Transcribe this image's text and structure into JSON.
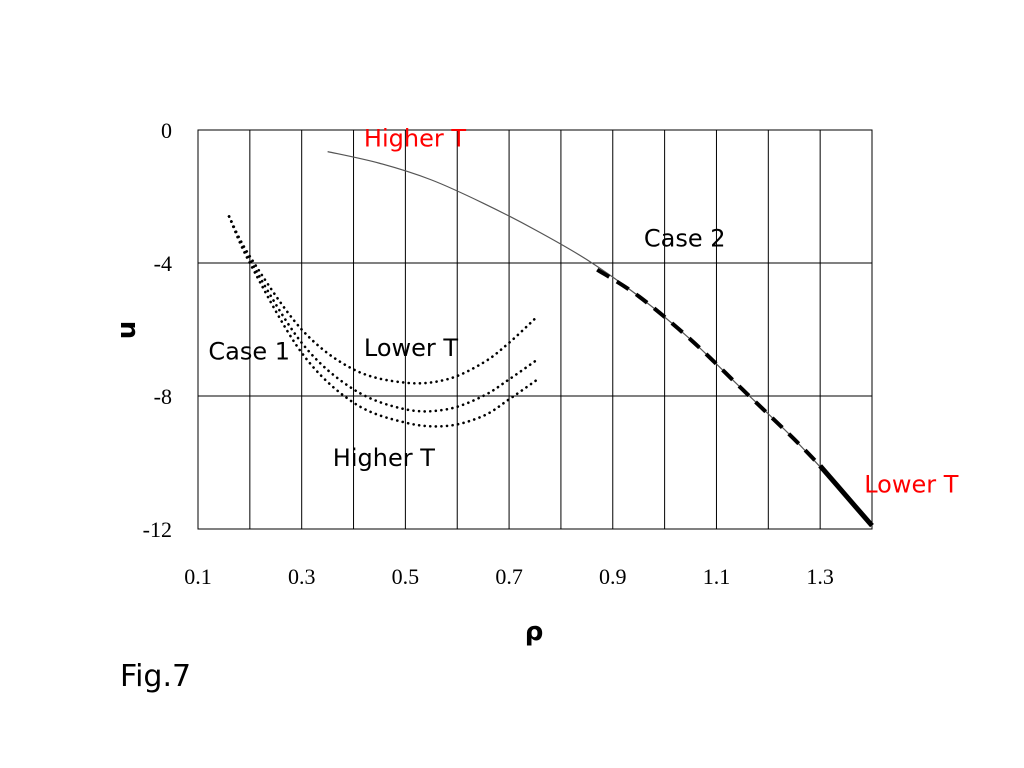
{
  "chart_data": {
    "type": "line",
    "xlabel": "ρ",
    "ylabel": "u",
    "xlim": [
      0.1,
      1.4
    ],
    "ylim": [
      -12,
      0
    ],
    "xticks": [
      "0.1",
      "0.3",
      "0.5",
      "0.7",
      "0.9",
      "1.1",
      "1.3"
    ],
    "yticks": [
      "0",
      "-4",
      "-8",
      "-12"
    ],
    "xgrid_values": [
      0.1,
      0.2,
      0.3,
      0.4,
      0.5,
      0.6,
      0.7,
      0.8,
      0.9,
      1.0,
      1.1,
      1.2,
      1.3,
      1.4
    ],
    "ygrid_values": [
      0,
      -4,
      -8,
      -12
    ],
    "grid": true,
    "series": [
      {
        "style": "solid-thin",
        "x": [
          0.35,
          0.45,
          0.55,
          0.65,
          0.75,
          0.85,
          0.95,
          1.05,
          1.15,
          1.25,
          1.35,
          1.4
        ],
        "y": [
          -0.65,
          -1.0,
          -1.5,
          -2.2,
          -3.0,
          -3.9,
          -5.0,
          -6.3,
          -7.8,
          -9.3,
          -11.0,
          -11.9
        ]
      },
      {
        "style": "dashed-thick",
        "x": [
          0.87,
          0.95,
          1.05,
          1.15,
          1.25,
          1.3
        ],
        "y": [
          -4.2,
          -5.0,
          -6.3,
          -7.8,
          -9.3,
          -10.1
        ]
      },
      {
        "style": "solid-thick",
        "x": [
          1.3,
          1.35,
          1.4
        ],
        "y": [
          -10.1,
          -11.0,
          -11.9
        ]
      },
      {
        "style": "dotted",
        "x": [
          0.16,
          0.2,
          0.3,
          0.4,
          0.5,
          0.58,
          0.65,
          0.7,
          0.755
        ],
        "y": [
          -2.6,
          -3.8,
          -6.0,
          -7.2,
          -7.6,
          -7.5,
          -7.0,
          -6.4,
          -5.6
        ]
      },
      {
        "style": "dotted",
        "x": [
          0.16,
          0.2,
          0.3,
          0.4,
          0.5,
          0.58,
          0.65,
          0.7,
          0.755
        ],
        "y": [
          -2.6,
          -3.9,
          -6.4,
          -7.8,
          -8.4,
          -8.4,
          -8.0,
          -7.5,
          -6.9
        ]
      },
      {
        "style": "dotted",
        "x": [
          0.16,
          0.2,
          0.3,
          0.4,
          0.5,
          0.58,
          0.65,
          0.7,
          0.755
        ],
        "y": [
          -2.6,
          -4.0,
          -6.7,
          -8.2,
          -8.8,
          -8.9,
          -8.6,
          -8.1,
          -7.5
        ]
      }
    ],
    "annotations": [
      {
        "text": "Higher T",
        "color": "#ff0000",
        "x": 0.42,
        "y": -0.5
      },
      {
        "text": "Case 2",
        "color": "#000000",
        "x": 0.96,
        "y": -3.5
      },
      {
        "text": "Case 1",
        "color": "#000000",
        "x": 0.12,
        "y": -6.9
      },
      {
        "text": "Lower T",
        "color": "#000000",
        "x": 0.42,
        "y": -6.8
      },
      {
        "text": "Higher T",
        "color": "#000000",
        "x": 0.36,
        "y": -10.1
      },
      {
        "text": "Lower T",
        "color": "#ff0000",
        "x": 1.385,
        "y": -10.9
      }
    ]
  },
  "caption": "Fig.7"
}
